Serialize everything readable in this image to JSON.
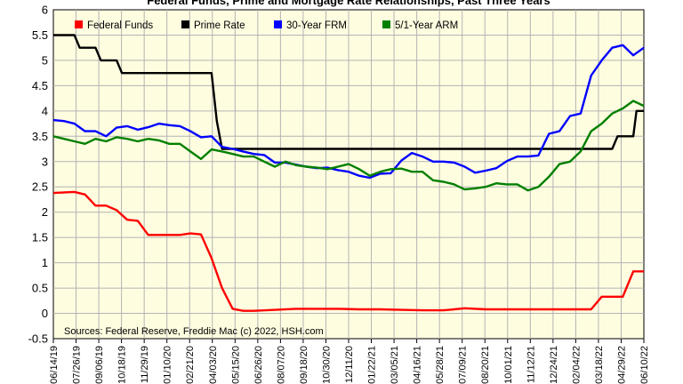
{
  "chart_data": {
    "type": "line",
    "title": "Federal Funds, Prime and Mortgage Rate Relationships, Past Three Years",
    "source": "Sources: Federal Reserve, Freddie Mac (c) 2022, HSH.com",
    "ylim": [
      -0.5,
      6
    ],
    "yticks": [
      "6",
      "5.5",
      "5",
      "4.5",
      "4",
      "3.5",
      "3",
      "2.5",
      "2",
      "1.5",
      "1",
      "0.5",
      "0",
      "-0.5"
    ],
    "x_tick_labels": [
      "06/14/19",
      "07/26/19",
      "09/06/19",
      "10/18/19",
      "11/29/19",
      "01/10/20",
      "02/21/20",
      "04/03/20",
      "05/15/20",
      "06/26/20",
      "08/07/20",
      "09/18/20",
      "10/30/20",
      "12/11/20",
      "01/22/21",
      "03/05/21",
      "04/16/21",
      "05/28/21",
      "07/09/21",
      "08/20/21",
      "10/01/21",
      "11/12/21",
      "12/24/21",
      "02/04/22",
      "03/18/22",
      "04/29/22",
      "06/10/22"
    ],
    "grid": true,
    "legend_position": "top",
    "series": [
      {
        "name": "Federal Funds",
        "color": "#ff0000",
        "values": [
          [
            0,
            2.38
          ],
          [
            2,
            2.4
          ],
          [
            3,
            2.35
          ],
          [
            4,
            2.13
          ],
          [
            5,
            2.13
          ],
          [
            6,
            2.04
          ],
          [
            7,
            1.85
          ],
          [
            8,
            1.83
          ],
          [
            9,
            1.55
          ],
          [
            12,
            1.55
          ],
          [
            13,
            1.58
          ],
          [
            14,
            1.56
          ],
          [
            15,
            1.09
          ],
          [
            16,
            0.5
          ],
          [
            17,
            0.09
          ],
          [
            18,
            0.05
          ],
          [
            19,
            0.05
          ],
          [
            21,
            0.07
          ],
          [
            23,
            0.09
          ],
          [
            25,
            0.09
          ],
          [
            27,
            0.09
          ],
          [
            29,
            0.08
          ],
          [
            31,
            0.08
          ],
          [
            33,
            0.07
          ],
          [
            35,
            0.06
          ],
          [
            37,
            0.06
          ],
          [
            38,
            0.08
          ],
          [
            39,
            0.1
          ],
          [
            41,
            0.08
          ],
          [
            43,
            0.08
          ],
          [
            45,
            0.08
          ],
          [
            47,
            0.08
          ],
          [
            49,
            0.08
          ],
          [
            51,
            0.08
          ],
          [
            52,
            0.33
          ],
          [
            53,
            0.33
          ],
          [
            54,
            0.33
          ],
          [
            55,
            0.83
          ],
          [
            56,
            0.83
          ]
        ]
      },
      {
        "name": "Prime Rate",
        "color": "#000000",
        "values": [
          [
            0,
            5.5
          ],
          [
            2,
            5.5
          ],
          [
            2.5,
            5.25
          ],
          [
            4,
            5.25
          ],
          [
            4.5,
            5.0
          ],
          [
            6,
            5.0
          ],
          [
            6.5,
            4.75
          ],
          [
            15,
            4.75
          ],
          [
            15.5,
            3.8
          ],
          [
            16,
            3.25
          ],
          [
            53,
            3.25
          ],
          [
            53.5,
            3.5
          ],
          [
            55,
            3.5
          ],
          [
            55.3,
            4.0
          ],
          [
            56,
            4.0
          ]
        ]
      },
      {
        "name": "30-Year FRM",
        "color": "#0000ff",
        "values": [
          [
            0,
            3.82
          ],
          [
            1,
            3.8
          ],
          [
            2,
            3.75
          ],
          [
            3,
            3.6
          ],
          [
            4,
            3.6
          ],
          [
            5,
            3.5
          ],
          [
            6,
            3.67
          ],
          [
            7,
            3.7
          ],
          [
            8,
            3.63
          ],
          [
            9,
            3.68
          ],
          [
            10,
            3.75
          ],
          [
            11,
            3.72
          ],
          [
            12,
            3.7
          ],
          [
            13,
            3.6
          ],
          [
            14,
            3.48
          ],
          [
            15,
            3.5
          ],
          [
            16,
            3.29
          ],
          [
            17,
            3.25
          ],
          [
            18,
            3.2
          ],
          [
            19,
            3.15
          ],
          [
            20,
            3.13
          ],
          [
            21,
            2.98
          ],
          [
            22,
            2.98
          ],
          [
            23,
            2.94
          ],
          [
            24,
            2.9
          ],
          [
            25,
            2.87
          ],
          [
            26,
            2.88
          ],
          [
            27,
            2.83
          ],
          [
            28,
            2.8
          ],
          [
            29,
            2.72
          ],
          [
            30,
            2.68
          ],
          [
            31,
            2.76
          ],
          [
            32,
            2.77
          ],
          [
            33,
            3.02
          ],
          [
            34,
            3.17
          ],
          [
            35,
            3.1
          ],
          [
            36,
            3.0
          ],
          [
            37,
            3.0
          ],
          [
            38,
            2.98
          ],
          [
            39,
            2.9
          ],
          [
            40,
            2.78
          ],
          [
            41,
            2.82
          ],
          [
            42,
            2.87
          ],
          [
            43,
            3.01
          ],
          [
            44,
            3.1
          ],
          [
            45,
            3.1
          ],
          [
            46,
            3.12
          ],
          [
            47,
            3.55
          ],
          [
            48,
            3.6
          ],
          [
            49,
            3.9
          ],
          [
            50,
            3.95
          ],
          [
            51,
            4.7
          ],
          [
            52,
            5.0
          ],
          [
            53,
            5.25
          ],
          [
            54,
            5.3
          ],
          [
            55,
            5.1
          ],
          [
            56,
            5.25
          ]
        ]
      },
      {
        "name": "5/1-Year ARM",
        "color": "#008000",
        "values": [
          [
            0,
            3.5
          ],
          [
            1,
            3.45
          ],
          [
            2,
            3.4
          ],
          [
            3,
            3.35
          ],
          [
            4,
            3.45
          ],
          [
            5,
            3.4
          ],
          [
            6,
            3.48
          ],
          [
            7,
            3.45
          ],
          [
            8,
            3.4
          ],
          [
            9,
            3.45
          ],
          [
            10,
            3.42
          ],
          [
            11,
            3.35
          ],
          [
            12,
            3.35
          ],
          [
            13,
            3.2
          ],
          [
            14,
            3.05
          ],
          [
            15,
            3.24
          ],
          [
            16,
            3.2
          ],
          [
            17,
            3.15
          ],
          [
            18,
            3.1
          ],
          [
            19,
            3.1
          ],
          [
            20,
            3.0
          ],
          [
            21,
            2.9
          ],
          [
            22,
            3.0
          ],
          [
            23,
            2.93
          ],
          [
            24,
            2.9
          ],
          [
            25,
            2.88
          ],
          [
            26,
            2.85
          ],
          [
            27,
            2.9
          ],
          [
            28,
            2.95
          ],
          [
            29,
            2.85
          ],
          [
            30,
            2.72
          ],
          [
            31,
            2.8
          ],
          [
            32,
            2.85
          ],
          [
            33,
            2.86
          ],
          [
            34,
            2.8
          ],
          [
            35,
            2.8
          ],
          [
            36,
            2.63
          ],
          [
            37,
            2.6
          ],
          [
            38,
            2.55
          ],
          [
            39,
            2.45
          ],
          [
            40,
            2.47
          ],
          [
            41,
            2.5
          ],
          [
            42,
            2.57
          ],
          [
            43,
            2.55
          ],
          [
            44,
            2.55
          ],
          [
            45,
            2.43
          ],
          [
            46,
            2.5
          ],
          [
            47,
            2.7
          ],
          [
            48,
            2.95
          ],
          [
            49,
            3.0
          ],
          [
            50,
            3.2
          ],
          [
            51,
            3.6
          ],
          [
            52,
            3.75
          ],
          [
            53,
            3.95
          ],
          [
            54,
            4.05
          ],
          [
            55,
            4.2
          ],
          [
            56,
            4.1
          ]
        ]
      }
    ]
  }
}
